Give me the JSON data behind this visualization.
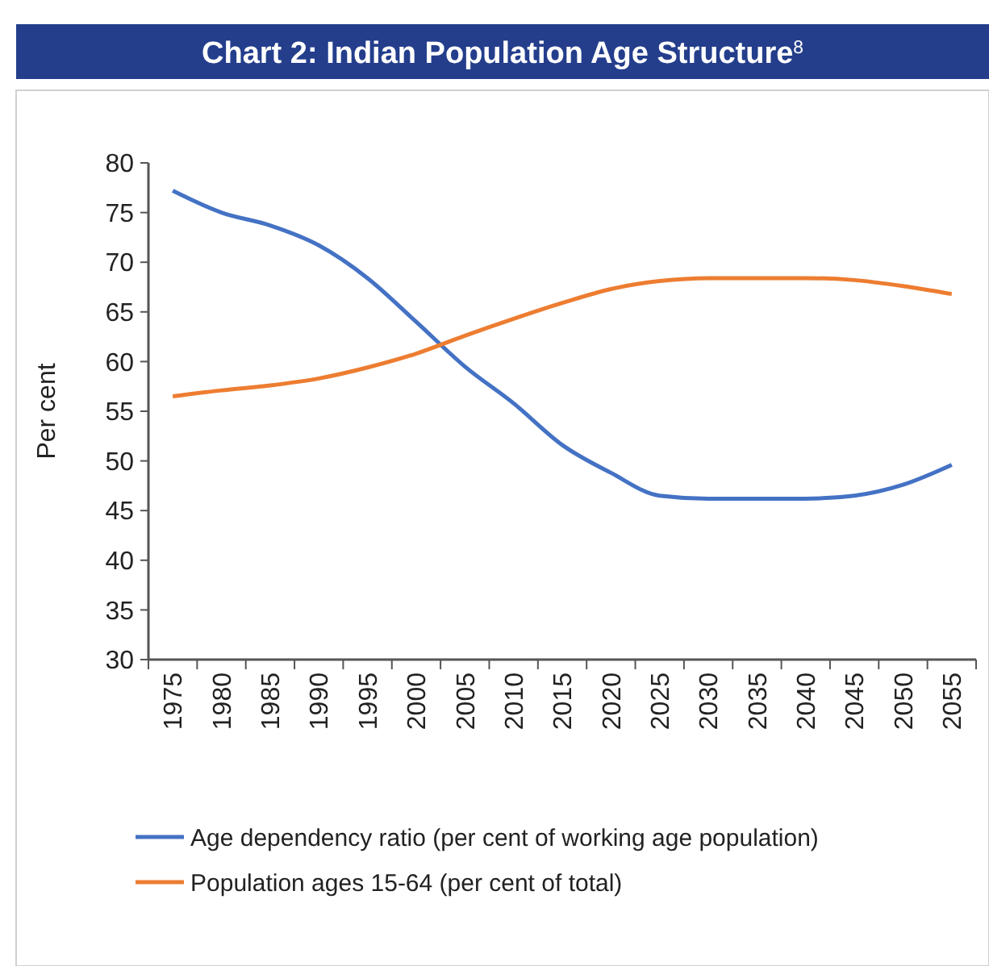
{
  "chart_data": {
    "type": "line",
    "title": "Chart 2: Indian Population Age Structure$^{8}$",
    "ylabel": "Per cent",
    "categories": [
      "1975",
      "1980",
      "1985",
      "1990",
      "1995",
      "2000",
      "2005",
      "2010",
      "2015",
      "2020",
      "2025",
      "2030",
      "2035",
      "2040",
      "2045",
      "2050",
      "2055"
    ],
    "ylim": [
      30,
      80
    ],
    "yticks": [
      30,
      35,
      40,
      45,
      50,
      55,
      60,
      65,
      70,
      75,
      80
    ],
    "grid": false,
    "legend": "bottom",
    "marker": "none",
    "line_style": "solid",
    "series": [
      {
        "name": "Age dependency ratio (per cent of working age population)",
        "color": "#4472c4",
        "values": [
          77.2,
          75,
          73.7,
          71.7,
          68.4,
          64,
          59.5,
          55.8,
          51.6,
          48.8,
          46.5,
          46.2,
          46.2,
          46.2,
          46.5,
          47.6,
          49.6
        ]
      },
      {
        "name": "Population ages 15-64 (per cent of total)",
        "color": "#ed7d31",
        "values": [
          56.5,
          57.1,
          57.6,
          58.3,
          59.4,
          60.8,
          62.6,
          64.3,
          65.9,
          67.3,
          68.1,
          68.4,
          68.4,
          68.4,
          68.2,
          67.6,
          66.8
        ]
      }
    ]
  }
}
